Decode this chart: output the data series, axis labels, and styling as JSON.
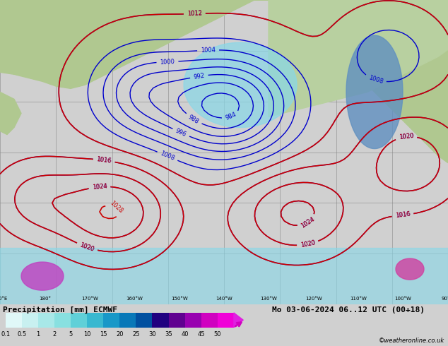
{
  "title_left": "Precipitation [mm] ECMWF",
  "title_right": "Mo 03-06-2024 06..12 UTC (00+18)",
  "copyright": "©weatheronline.co.uk",
  "colorbar_values": [
    0.1,
    0.5,
    1,
    2,
    5,
    10,
    15,
    20,
    25,
    30,
    35,
    40,
    45,
    50
  ],
  "colorbar_colors": [
    "#e0f8f8",
    "#c8f0f0",
    "#a8e8e8",
    "#88e0e0",
    "#60d0d8",
    "#38b8d0",
    "#1898c8",
    "#0878b8",
    "#0050a0",
    "#200080",
    "#600090",
    "#9800b0",
    "#d000c0",
    "#f000d8",
    "#f820e8"
  ],
  "background_color": "#d0d0d0",
  "map_bg_ocean": "#c8e0f0",
  "map_bg_land_green": "#b8d8a0",
  "map_bg_land_gray": "#c8c8c8",
  "grid_color": "#a0a0a0",
  "blue_contour_color": "#0000cc",
  "red_contour_color": "#cc0000",
  "label_fontsize": 7,
  "title_fontsize": 8,
  "fig_width": 6.34,
  "fig_height": 4.9,
  "dpi": 100
}
